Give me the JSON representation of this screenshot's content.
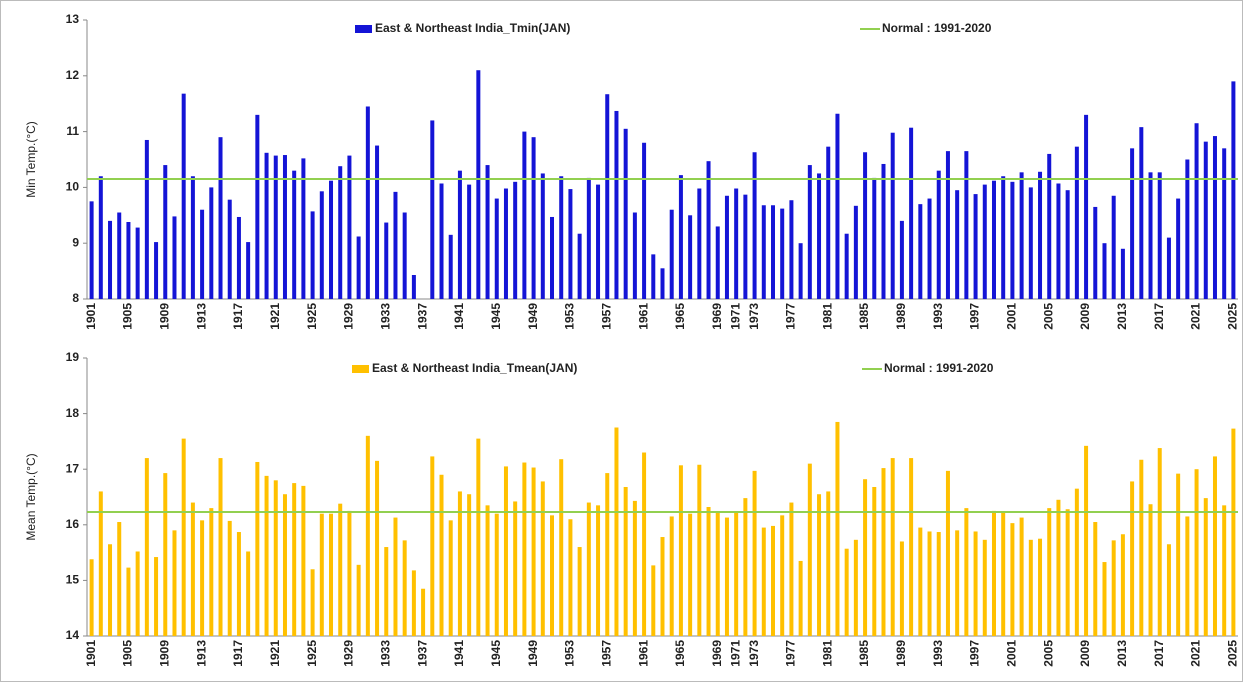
{
  "chart_data": [
    {
      "type": "bar",
      "y_label": "Min Temp.(°C)",
      "categories": [
        "1901",
        null,
        null,
        null,
        "1905",
        null,
        null,
        null,
        "1909",
        null,
        null,
        null,
        "1913",
        null,
        null,
        null,
        "1917",
        null,
        null,
        null,
        "1921",
        null,
        null,
        null,
        "1925",
        null,
        null,
        null,
        "1929",
        null,
        null,
        null,
        "1933",
        null,
        null,
        null,
        "1937",
        null,
        null,
        null,
        "1941",
        null,
        null,
        null,
        "1945",
        null,
        null,
        null,
        "1949",
        null,
        null,
        null,
        "1953",
        null,
        null,
        null,
        "1957",
        null,
        null,
        null,
        "1961",
        null,
        null,
        null,
        "1965",
        null,
        null,
        null,
        "1969",
        null,
        "1971",
        null,
        "1973",
        null,
        null,
        null,
        "1977",
        null,
        null,
        null,
        "1981",
        null,
        null,
        null,
        "1985",
        null,
        null,
        null,
        "1989",
        null,
        null,
        null,
        "1993",
        null,
        null,
        null,
        "1997",
        null,
        null,
        null,
        "2001",
        null,
        null,
        null,
        "2005",
        null,
        null,
        null,
        "2009",
        null,
        null,
        null,
        "2013",
        null,
        null,
        null,
        "2017",
        null,
        null,
        null,
        "2021",
        null,
        null,
        null,
        "2025"
      ],
      "series": [
        {
          "name": "East & Northeast India_Tmin(JAN)",
          "color": "#1414d6",
          "values": [
            9.75,
            10.2,
            9.4,
            9.55,
            9.38,
            9.28,
            10.85,
            9.02,
            10.4,
            9.48,
            11.68,
            10.2,
            9.6,
            10.0,
            10.9,
            9.78,
            9.47,
            9.02,
            11.3,
            10.62,
            10.57,
            10.58,
            10.3,
            10.52,
            9.57,
            9.93,
            10.12,
            10.38,
            10.57,
            9.12,
            11.45,
            10.75,
            9.37,
            9.92,
            9.55,
            8.43,
            8.0,
            11.2,
            10.07,
            9.15,
            10.3,
            10.05,
            12.1,
            10.4,
            9.8,
            9.98,
            10.1,
            11.0,
            10.9,
            10.25,
            9.47,
            10.2,
            9.97,
            9.17,
            10.17,
            10.05,
            11.67,
            11.37,
            11.05,
            9.55,
            10.8,
            8.8,
            8.55,
            9.6,
            10.22,
            9.5,
            9.98,
            10.47,
            9.3,
            9.85,
            9.98,
            9.87,
            10.63,
            9.68,
            9.68,
            9.62,
            9.77,
            9.0,
            10.4,
            10.25,
            10.73,
            11.32,
            9.17,
            9.67,
            10.63,
            10.17,
            10.42,
            10.98,
            9.4,
            11.07,
            9.7,
            9.8,
            10.3,
            10.65,
            9.95,
            10.65,
            9.88,
            10.05,
            10.12,
            10.2,
            10.1,
            10.27,
            10.0,
            10.28,
            10.6,
            10.07,
            9.95,
            10.73,
            11.3,
            9.65,
            9.0,
            9.85,
            8.9,
            10.7,
            11.08,
            10.27,
            10.27,
            9.1,
            9.8,
            10.5,
            11.15,
            10.82,
            10.92,
            10.7,
            11.9
          ]
        }
      ],
      "reference_line": {
        "name": "Normal : 1991-2020",
        "color": "#92d050",
        "value": 10.15
      },
      "ylim": [
        8,
        13
      ],
      "yticks": [
        8,
        9,
        10,
        11,
        12,
        13
      ]
    },
    {
      "type": "bar",
      "y_label": "Mean Temp.(°C)",
      "categories": [
        "1901",
        null,
        null,
        null,
        "1905",
        null,
        null,
        null,
        "1909",
        null,
        null,
        null,
        "1913",
        null,
        null,
        null,
        "1917",
        null,
        null,
        null,
        "1921",
        null,
        null,
        null,
        "1925",
        null,
        null,
        null,
        "1929",
        null,
        null,
        null,
        "1933",
        null,
        null,
        null,
        "1937",
        null,
        null,
        null,
        "1941",
        null,
        null,
        null,
        "1945",
        null,
        null,
        null,
        "1949",
        null,
        null,
        null,
        "1953",
        null,
        null,
        null,
        "1957",
        null,
        null,
        null,
        "1961",
        null,
        null,
        null,
        "1965",
        null,
        null,
        null,
        "1969",
        null,
        "1971",
        null,
        "1973",
        null,
        null,
        null,
        "1977",
        null,
        null,
        null,
        "1981",
        null,
        null,
        null,
        "1985",
        null,
        null,
        null,
        "1989",
        null,
        null,
        null,
        "1993",
        null,
        null,
        null,
        "1997",
        null,
        null,
        null,
        "2001",
        null,
        null,
        null,
        "2005",
        null,
        null,
        null,
        "2009",
        null,
        null,
        null,
        "2013",
        null,
        null,
        null,
        "2017",
        null,
        null,
        null,
        "2021",
        null,
        null,
        null,
        "2025"
      ],
      "series": [
        {
          "name": "East & Northeast India_Tmean(JAN)",
          "color": "#ffc000",
          "values": [
            15.38,
            16.6,
            15.65,
            16.05,
            15.23,
            15.52,
            17.2,
            15.42,
            16.93,
            15.9,
            17.55,
            16.4,
            16.08,
            16.3,
            17.2,
            16.07,
            15.87,
            15.52,
            17.13,
            16.88,
            16.8,
            16.55,
            16.75,
            16.7,
            15.2,
            16.2,
            16.2,
            16.38,
            16.25,
            15.28,
            17.6,
            17.15,
            15.6,
            16.13,
            15.72,
            15.18,
            14.85,
            17.23,
            16.9,
            16.08,
            16.6,
            16.55,
            17.55,
            16.35,
            16.2,
            17.05,
            16.42,
            17.12,
            17.03,
            16.78,
            16.17,
            17.18,
            16.1,
            15.6,
            16.4,
            16.35,
            16.93,
            17.75,
            16.68,
            16.43,
            17.3,
            15.27,
            15.78,
            16.15,
            17.07,
            16.2,
            17.08,
            16.32,
            16.23,
            16.13,
            16.22,
            16.48,
            16.97,
            15.95,
            15.98,
            16.17,
            16.4,
            15.35,
            17.1,
            16.55,
            16.6,
            17.85,
            15.57,
            15.73,
            16.82,
            16.68,
            17.02,
            17.2,
            15.7,
            17.2,
            15.95,
            15.88,
            15.87,
            16.97,
            15.9,
            16.3,
            15.88,
            15.73,
            16.25,
            16.22,
            16.03,
            16.13,
            15.73,
            15.75,
            16.3,
            16.45,
            16.28,
            16.65,
            17.42,
            16.05,
            15.33,
            15.72,
            15.83,
            16.78,
            17.17,
            16.37,
            17.38,
            15.65,
            16.92,
            16.15,
            17.0,
            16.48,
            17.23,
            16.35,
            17.73
          ]
        }
      ],
      "reference_line": {
        "name": "Normal : 1991-2020",
        "color": "#92d050",
        "value": 16.23
      },
      "ylim": [
        14,
        19
      ],
      "yticks": [
        14,
        15,
        16,
        17,
        18,
        19
      ]
    }
  ]
}
